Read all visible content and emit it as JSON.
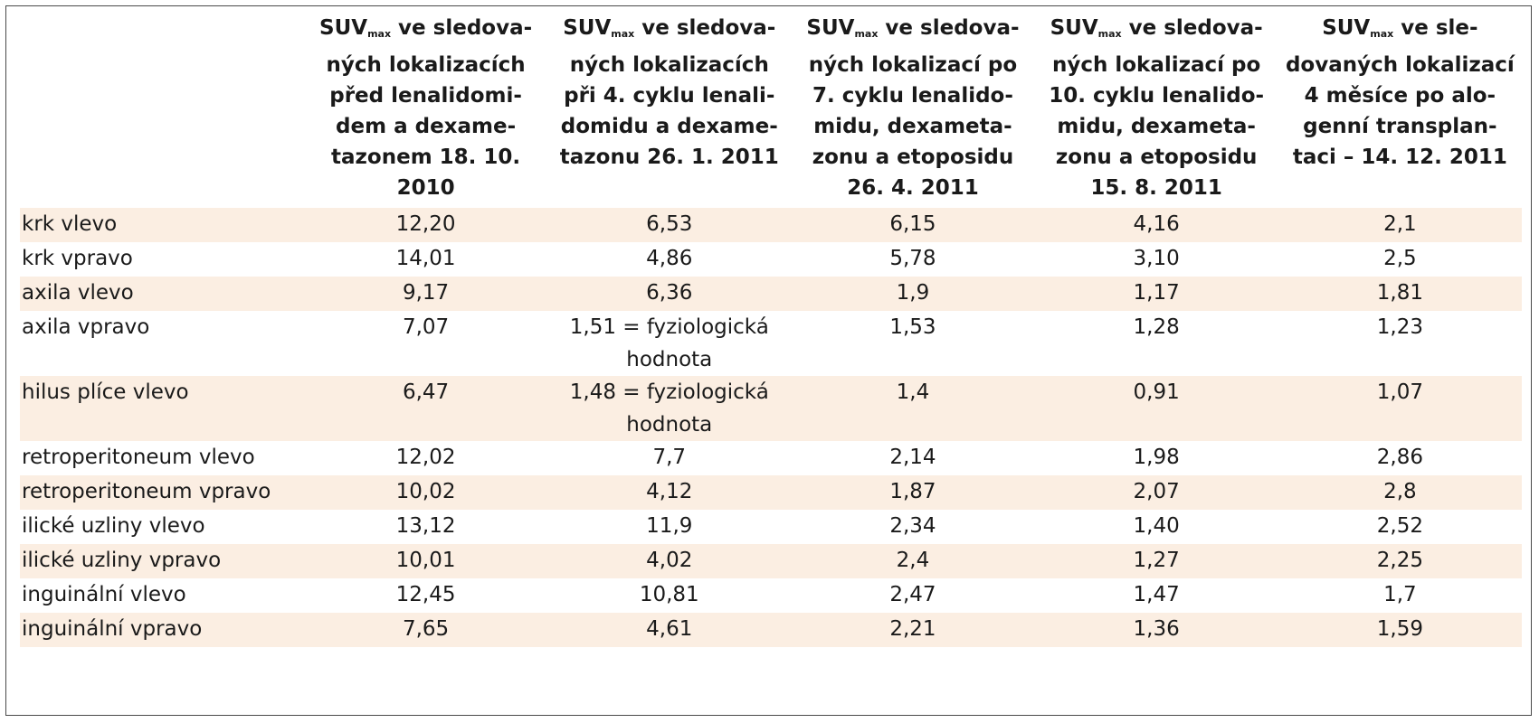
{
  "columns": [
    {
      "sym": "SUV",
      "sub": "max",
      "lines": [
        " ve sledova-",
        "ných  lokalizacích",
        "před lenalidomi-",
        "dem a dexame-",
        "tazonem 18. 10.",
        "2010"
      ]
    },
    {
      "sym": "SUV",
      "sub": "max",
      "lines": [
        " ve sledova-",
        "ných lokalizacích",
        "při 4. cyklu lenali-",
        "domidu a dexame-",
        "tazonu 26. 1. 2011"
      ]
    },
    {
      "sym": "SUV",
      "sub": "max",
      "lines": [
        " ve sledova-",
        "ných lokalizací po",
        "7. cyklu lenalido-",
        "midu, dexameta-",
        "zonu a etoposidu",
        "26. 4. 2011"
      ]
    },
    {
      "sym": "SUV",
      "sub": "max",
      "lines": [
        " ve sledova-",
        "ných lokalizací po",
        "10. cyklu lenalido-",
        "midu, dexameta-",
        "zonu a etoposidu",
        "15. 8. 2011"
      ]
    },
    {
      "sym": "SUV",
      "sub": "max",
      "lines": [
        " ve sle-",
        "dovaných lokalizací",
        "4 měsíce po alo-",
        "genní transplan-",
        "taci – 14. 12. 2011"
      ]
    }
  ],
  "rows": [
    {
      "name": "krk vlevo",
      "values": [
        [
          "12,20"
        ],
        [
          "6,53"
        ],
        [
          "6,15"
        ],
        [
          "4,16"
        ],
        [
          "2,1"
        ]
      ]
    },
    {
      "name": "krk vpravo",
      "values": [
        [
          "14,01"
        ],
        [
          "4,86"
        ],
        [
          "5,78"
        ],
        [
          "3,10"
        ],
        [
          "2,5"
        ]
      ]
    },
    {
      "name": "axila vlevo",
      "values": [
        [
          "9,17"
        ],
        [
          "6,36"
        ],
        [
          "1,9"
        ],
        [
          "1,17"
        ],
        [
          "1,81"
        ]
      ]
    },
    {
      "name": "axila vpravo",
      "values": [
        [
          "7,07"
        ],
        [
          "1,51 = fyziologická",
          "hodnota"
        ],
        [
          "1,53"
        ],
        [
          "1,28"
        ],
        [
          "1,23"
        ]
      ]
    },
    {
      "name": "hilus plíce vlevo",
      "values": [
        [
          "6,47"
        ],
        [
          "1,48 = fyziologická",
          "hodnota"
        ],
        [
          "1,4"
        ],
        [
          "0,91"
        ],
        [
          "1,07"
        ]
      ]
    },
    {
      "name": "retroperitoneum vlevo",
      "values": [
        [
          "12,02"
        ],
        [
          "7,7"
        ],
        [
          "2,14"
        ],
        [
          "1,98"
        ],
        [
          "2,86"
        ]
      ]
    },
    {
      "name": "retroperitoneum vpravo",
      "values": [
        [
          "10,02"
        ],
        [
          "4,12"
        ],
        [
          "1,87"
        ],
        [
          "2,07"
        ],
        [
          "2,8"
        ]
      ]
    },
    {
      "name": "ilické uzliny vlevo",
      "values": [
        [
          "13,12"
        ],
        [
          "11,9"
        ],
        [
          "2,34"
        ],
        [
          "1,40"
        ],
        [
          "2,52"
        ]
      ]
    },
    {
      "name": "ilické uzliny vpravo",
      "values": [
        [
          "10,01"
        ],
        [
          "4,02"
        ],
        [
          "2,4"
        ],
        [
          "1,27"
        ],
        [
          "2,25"
        ]
      ]
    },
    {
      "name": "inguinální vlevo",
      "values": [
        [
          "12,45"
        ],
        [
          "10,81"
        ],
        [
          "2,47"
        ],
        [
          "1,47"
        ],
        [
          "1,7"
        ]
      ]
    },
    {
      "name": "inguinální vpravo",
      "values": [
        [
          "7,65"
        ],
        [
          "4,61"
        ],
        [
          "2,21"
        ],
        [
          "1,36"
        ],
        [
          "1,59"
        ]
      ]
    }
  ],
  "colors": {
    "stripe": "#fbeee2",
    "border": "#4a4a4a",
    "text": "#1a1a1a"
  }
}
